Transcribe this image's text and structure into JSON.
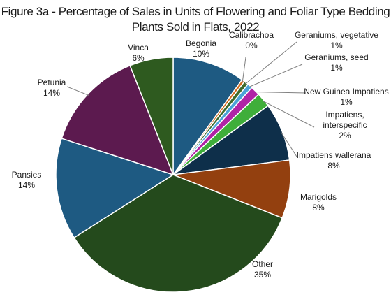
{
  "chart_data": {
    "type": "pie",
    "title_line1": "Figure 3a - Percentage of Sales in Units of Flowering and Foliar Type Bedding",
    "title_line2": "Plants Sold in Flats, 2022",
    "slices": [
      {
        "name": "Begonia",
        "label": "Begonia",
        "pct_label": "10%",
        "value": 10.0,
        "color": "#1e5a82"
      },
      {
        "name": "Calibrachoa",
        "label": "Calibrachoa",
        "pct_label": "0%",
        "value": 0.4,
        "color": "#d46a1c"
      },
      {
        "name": "Geraniums, vegetative",
        "label": "Geraniums, vegetative",
        "pct_label": "1%",
        "value": 0.6,
        "color": "#3f6b2c"
      },
      {
        "name": "Geraniums, seed",
        "label": "Geraniums, seed",
        "pct_label": "1%",
        "value": 0.7,
        "color": "#4aa3d8"
      },
      {
        "name": "New Guinea Impatiens",
        "label": "New Guinea Impatiens",
        "pct_label": "1%",
        "value": 1.3,
        "color": "#b023a6"
      },
      {
        "name": "Impatiens, interspecific",
        "label": "Impatiens, interspecific",
        "pct_label": "2%",
        "value": 2.0,
        "color": "#3fae3a"
      },
      {
        "name": "Impatiens wallerana",
        "label": "Impatiens wallerana",
        "pct_label": "8%",
        "value": 8.0,
        "color": "#0e2f4a"
      },
      {
        "name": "Marigolds",
        "label": "Marigolds",
        "pct_label": "8%",
        "value": 8.0,
        "color": "#93400f"
      },
      {
        "name": "Other",
        "label": "Other",
        "pct_label": "35%",
        "value": 35.0,
        "color": "#244a1c"
      },
      {
        "name": "Pansies",
        "label": "Pansies",
        "pct_label": "14%",
        "value": 14.0,
        "color": "#1e5a82"
      },
      {
        "name": "Petunia",
        "label": "Petunia",
        "pct_label": "14%",
        "value": 14.0,
        "color": "#5c1a4f"
      },
      {
        "name": "Vinca",
        "label": "Vinca",
        "pct_label": "6%",
        "value": 6.0,
        "color": "#2e5a1f"
      }
    ],
    "legend": "none",
    "slice_border_color": "#ffffff"
  }
}
